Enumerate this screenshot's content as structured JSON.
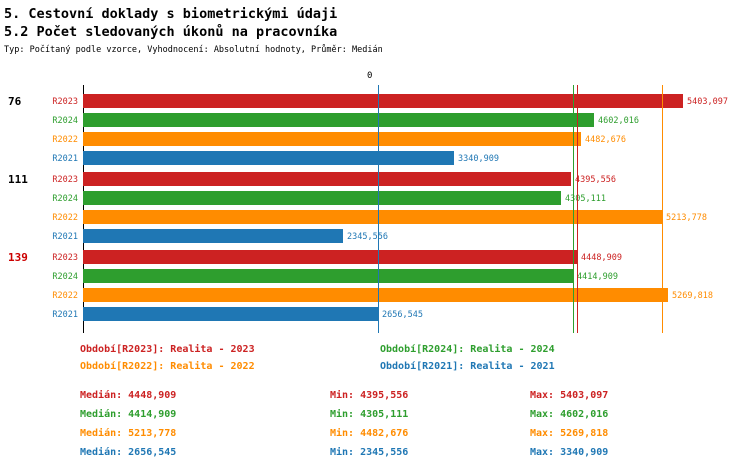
{
  "header": {
    "title_line1": "5. Cestovní doklady s biometrickými údaji",
    "title_line2": "5.2 Počet sledovaných úkonů na pracovníka",
    "meta": "Typ: Počítaný podle vzorce, Vyhodnocení: Absolutní hodnoty, Průměr: Medián"
  },
  "colors": {
    "R2023": "#cc2222",
    "R2024": "#2e9e2e",
    "R2022": "#ff8c00",
    "R2021": "#1f77b4",
    "group_label_default": "#000000",
    "group_label_highlight": "#cc0000",
    "axis": "#000000"
  },
  "chart_data": {
    "type": "bar",
    "orientation": "horizontal",
    "value_axis_start_label": "0",
    "value_axis": {
      "min": 0,
      "max_shown": 5403.097
    },
    "series_order": [
      "R2023",
      "R2024",
      "R2022",
      "R2021"
    ],
    "groups": [
      {
        "label": "76",
        "highlight": false,
        "bars": [
          {
            "series": "R2023",
            "value": 5403.097,
            "display": "5403,097"
          },
          {
            "series": "R2024",
            "value": 4602.016,
            "display": "4602,016"
          },
          {
            "series": "R2022",
            "value": 4482.676,
            "display": "4482,676"
          },
          {
            "series": "R2021",
            "value": 3340.909,
            "display": "3340,909"
          }
        ]
      },
      {
        "label": "111",
        "highlight": false,
        "bars": [
          {
            "series": "R2023",
            "value": 4395.556,
            "display": "4395,556"
          },
          {
            "series": "R2024",
            "value": 4305.111,
            "display": "4305,111"
          },
          {
            "series": "R2022",
            "value": 5213.778,
            "display": "5213,778"
          },
          {
            "series": "R2021",
            "value": 2345.556,
            "display": "2345,556"
          }
        ]
      },
      {
        "label": "139",
        "highlight": true,
        "bars": [
          {
            "series": "R2023",
            "value": 4448.909,
            "display": "4448,909"
          },
          {
            "series": "R2024",
            "value": 4414.909,
            "display": "4414,909"
          },
          {
            "series": "R2022",
            "value": 5269.818,
            "display": "5269,818"
          },
          {
            "series": "R2021",
            "value": 2656.545,
            "display": "2656,545"
          }
        ]
      }
    ],
    "median_lines": [
      {
        "series": "R2023",
        "value": 4448.909
      },
      {
        "series": "R2024",
        "value": 4414.909
      },
      {
        "series": "R2022",
        "value": 5213.778
      },
      {
        "series": "R2021",
        "value": 2656.545
      }
    ]
  },
  "legend": [
    {
      "series": "R2023",
      "text": "Období[R2023]: Realita - 2023"
    },
    {
      "series": "R2024",
      "text": "Období[R2024]: Realita - 2024"
    },
    {
      "series": "R2022",
      "text": "Období[R2022]: Realita - 2022"
    },
    {
      "series": "R2021",
      "text": "Období[R2021]: Realita - 2021"
    }
  ],
  "stats": [
    {
      "series": "R2023",
      "median": "Medián: 4448,909",
      "min": "Min: 4395,556",
      "max": "Max: 5403,097"
    },
    {
      "series": "R2024",
      "median": "Medián: 4414,909",
      "min": "Min: 4305,111",
      "max": "Max: 4602,016"
    },
    {
      "series": "R2022",
      "median": "Medián: 5213,778",
      "min": "Min: 4482,676",
      "max": "Max: 5269,818"
    },
    {
      "series": "R2021",
      "median": "Medián: 2656,545",
      "min": "Min: 2345,556",
      "max": "Max: 3340,909"
    }
  ]
}
